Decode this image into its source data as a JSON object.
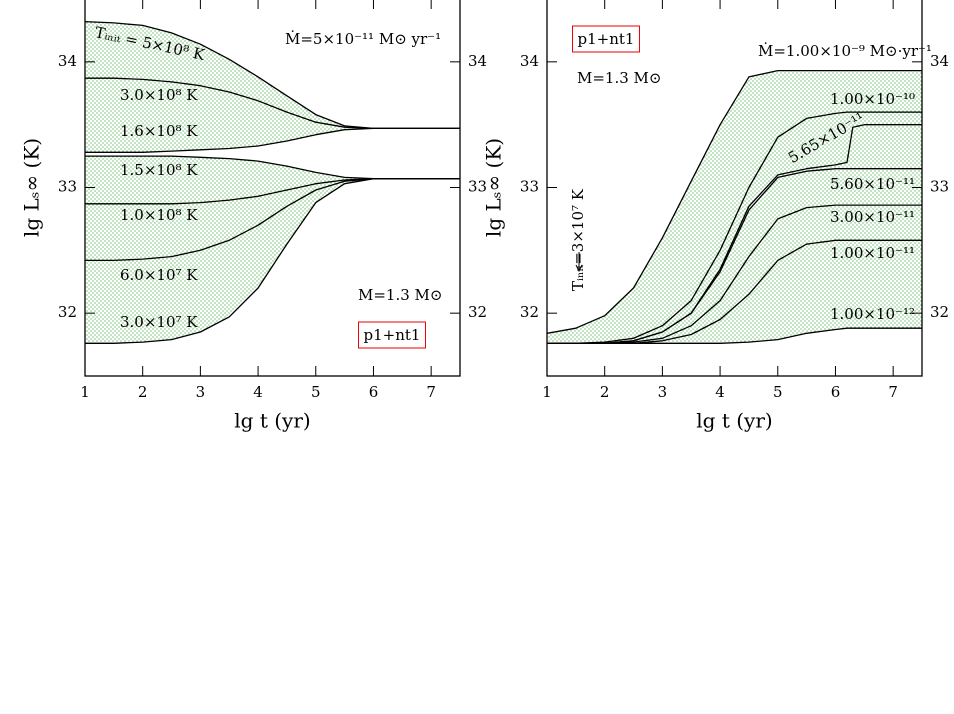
{
  "chart_data": [
    {
      "type": "line",
      "xlabel": "lg t  (yr)",
      "ylabel": "lg Lₛ∞ (K)",
      "xlim": [
        1,
        7.5
      ],
      "xticks": [
        1,
        2,
        3,
        4,
        5,
        6,
        7
      ],
      "ylim": [
        31.5,
        34.5
      ],
      "yticks": [
        32,
        33,
        34
      ],
      "fill_color": "#2ca02c",
      "fill_bands": [
        [
          0,
          2
        ],
        [
          3,
          6
        ]
      ],
      "x": [
        1,
        1.5,
        2,
        2.5,
        3,
        3.5,
        4,
        4.5,
        5,
        5.5,
        6,
        6.5,
        7,
        7.5
      ],
      "series": [
        {
          "name": "Tᵢₙᵢₜ = 5×10⁸ K",
          "color": "#000000",
          "values": [
            34.32,
            34.31,
            34.29,
            34.23,
            34.14,
            34.02,
            33.88,
            33.73,
            33.58,
            33.49,
            33.47,
            33.47,
            33.47,
            33.47
          ]
        },
        {
          "name": "3.0×10⁸ K",
          "color": "#000000",
          "values": [
            33.87,
            33.87,
            33.86,
            33.84,
            33.81,
            33.76,
            33.69,
            33.6,
            33.52,
            33.48,
            33.47,
            33.47,
            33.47,
            33.47
          ]
        },
        {
          "name": "1.6×10⁸ K",
          "color": "#000000",
          "values": [
            33.28,
            33.28,
            33.28,
            33.29,
            33.3,
            33.31,
            33.33,
            33.37,
            33.42,
            33.46,
            33.47,
            33.47,
            33.47,
            33.47
          ]
        },
        {
          "name": "1.5×10⁸ K",
          "color": "#000000",
          "values": [
            33.25,
            33.25,
            33.25,
            33.25,
            33.24,
            33.23,
            33.21,
            33.17,
            33.12,
            33.08,
            33.07,
            33.07,
            33.07,
            33.07
          ]
        },
        {
          "name": "1.0×10⁸ K",
          "color": "#000000",
          "values": [
            32.87,
            32.87,
            32.87,
            32.87,
            32.88,
            32.9,
            32.93,
            32.98,
            33.03,
            33.06,
            33.07,
            33.07,
            33.07,
            33.07
          ]
        },
        {
          "name": "6.0×10⁷ K",
          "color": "#000000",
          "values": [
            32.42,
            32.42,
            32.43,
            32.45,
            32.5,
            32.58,
            32.7,
            32.85,
            32.98,
            33.05,
            33.07,
            33.07,
            33.07,
            33.07
          ]
        },
        {
          "name": "3.0×10⁷ K",
          "color": "#000000",
          "values": [
            31.76,
            31.76,
            31.77,
            31.79,
            31.85,
            31.97,
            32.2,
            32.55,
            32.88,
            33.03,
            33.07,
            33.07,
            33.07,
            33.07
          ]
        }
      ],
      "annotations": [
        {
          "text": "Ṁ=5×10⁻¹¹ M⊙ yr⁻¹",
          "color": "#000000",
          "boxed": false
        },
        {
          "text": "M=1.3 M⊙",
          "color": "#000000",
          "boxed": false
        },
        {
          "text": "p1+nt1",
          "color": "#ee0000",
          "boxed": true
        }
      ]
    },
    {
      "type": "line",
      "xlabel": "lg t  (yr)",
      "ylabel": "lg Lₛ∞ (K)",
      "xlim": [
        1,
        7.5
      ],
      "xticks": [
        1,
        2,
        3,
        4,
        5,
        6,
        7
      ],
      "ylim": [
        31.5,
        34.5
      ],
      "yticks": [
        32,
        33,
        34
      ],
      "fill_color": "#2ca02c",
      "fill_bands": [
        [
          0,
          6
        ]
      ],
      "x": [
        1,
        1.5,
        2,
        2.5,
        3,
        3.5,
        4,
        4.5,
        5,
        5.5,
        6,
        6.2,
        6.3,
        6.5,
        7,
        7.5
      ],
      "series": [
        {
          "name": "Ṁ=1.00×10⁻⁹ M⊙·yr⁻¹",
          "color": "#000000",
          "values": [
            31.84,
            31.88,
            31.98,
            32.2,
            32.6,
            33.05,
            33.5,
            33.88,
            33.93,
            33.93,
            33.93,
            33.93,
            33.93,
            33.93,
            33.93,
            33.93
          ]
        },
        {
          "name": "1.00×10⁻¹⁰",
          "color": "#000000",
          "values": [
            31.76,
            31.76,
            31.77,
            31.8,
            31.9,
            32.1,
            32.5,
            33.0,
            33.4,
            33.55,
            33.59,
            33.6,
            33.6,
            33.6,
            33.6,
            33.6
          ]
        },
        {
          "name": "5.65×10⁻¹¹",
          "color": "#000000",
          "values": [
            31.76,
            31.76,
            31.76,
            31.78,
            31.85,
            32.0,
            32.35,
            32.85,
            33.1,
            33.15,
            33.18,
            33.2,
            33.48,
            33.5,
            33.5,
            33.5
          ]
        },
        {
          "name": "5.60×10⁻¹¹",
          "color": "#000000",
          "values": [
            31.76,
            31.76,
            31.76,
            31.78,
            31.85,
            32.0,
            32.33,
            32.82,
            33.08,
            33.13,
            33.15,
            33.15,
            33.15,
            33.15,
            33.15,
            33.15
          ]
        },
        {
          "name": "3.00×10⁻¹¹",
          "color": "#000000",
          "values": [
            31.76,
            31.76,
            31.76,
            31.77,
            31.8,
            31.9,
            32.1,
            32.45,
            32.75,
            32.84,
            32.86,
            32.86,
            32.86,
            32.86,
            32.86,
            32.86
          ]
        },
        {
          "name": "1.00×10⁻¹¹",
          "color": "#000000",
          "values": [
            31.76,
            31.76,
            31.76,
            31.76,
            31.78,
            31.83,
            31.95,
            32.15,
            32.42,
            32.55,
            32.58,
            32.58,
            32.58,
            32.58,
            32.58,
            32.58
          ]
        },
        {
          "name": "1.00×10⁻¹²",
          "color": "#000000",
          "values": [
            31.76,
            31.76,
            31.76,
            31.76,
            31.76,
            31.76,
            31.76,
            31.77,
            31.79,
            31.84,
            31.87,
            31.88,
            31.88,
            31.88,
            31.88,
            31.88
          ]
        }
      ],
      "annotations": [
        {
          "text": "p1+nt1",
          "color": "#ee0000",
          "boxed": true
        },
        {
          "text": "M=1.3 M⊙",
          "color": "#000000",
          "boxed": false
        },
        {
          "text": "Tᵢₙᵢₜ=3×10⁷ K",
          "color": "#000000",
          "boxed": false
        }
      ]
    }
  ]
}
